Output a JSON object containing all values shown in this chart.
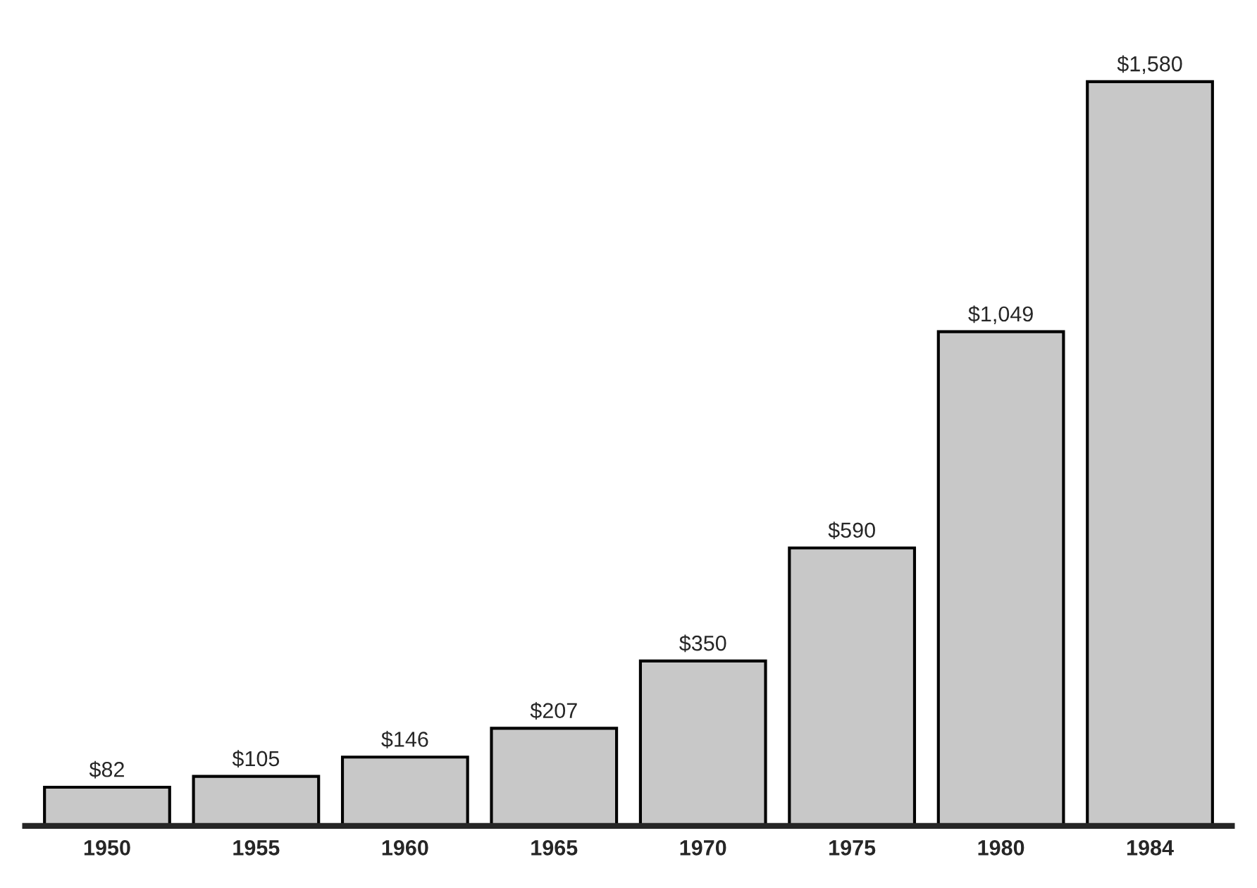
{
  "chart_data": {
    "type": "bar",
    "categories": [
      "1950",
      "1955",
      "1960",
      "1965",
      "1970",
      "1975",
      "1980",
      "1984"
    ],
    "values": [
      82,
      105,
      146,
      207,
      350,
      590,
      1049,
      1580
    ],
    "color": "#c8c8c8",
    "value_labels": [
      "$82",
      "$105",
      "$146",
      "$207",
      "$350",
      "$590",
      "$1,049",
      "$1,580"
    ],
    "tick_labels": "x",
    "grid": false,
    "legend": false
  }
}
